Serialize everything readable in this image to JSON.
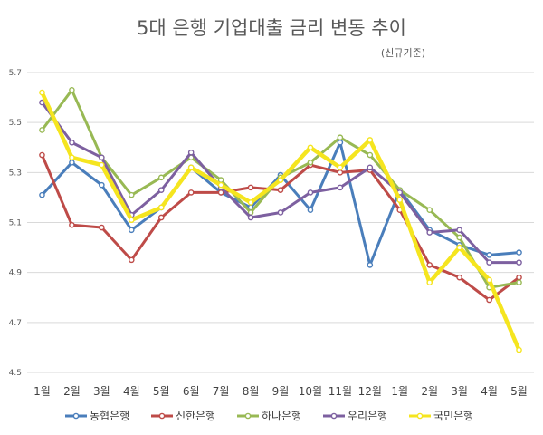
{
  "chart_data": {
    "type": "line",
    "title": "5대 은행 기업대출 금리 변동 추이",
    "subtitle": "(신규기준)",
    "categories": [
      "1월",
      "2월",
      "3월",
      "4월",
      "5월",
      "6월",
      "7월",
      "8월",
      "9월",
      "10월",
      "11월",
      "12월",
      "1월",
      "2월",
      "3월",
      "4월",
      "5월"
    ],
    "ylim": [
      4.5,
      5.7
    ],
    "yticks": [
      "4.5",
      "4.7",
      "4.9",
      "5.1",
      "5.3",
      "5.5",
      "5.7"
    ],
    "grid": true,
    "legend": "bottom",
    "series": [
      {
        "name": "농협은행",
        "color": "#4a7ebb",
        "values": [
          5.21,
          5.34,
          5.25,
          5.07,
          5.16,
          5.32,
          5.22,
          5.16,
          5.29,
          5.15,
          5.42,
          4.93,
          5.23,
          5.07,
          5.01,
          4.97,
          4.98
        ]
      },
      {
        "name": "신한은행",
        "color": "#be4b48",
        "values": [
          5.37,
          5.09,
          5.08,
          4.95,
          5.12,
          5.22,
          5.22,
          5.24,
          5.23,
          5.33,
          5.3,
          5.31,
          5.15,
          4.93,
          4.88,
          4.79,
          4.88
        ]
      },
      {
        "name": "하나은행",
        "color": "#98b954",
        "values": [
          5.47,
          5.63,
          5.36,
          5.21,
          5.28,
          5.36,
          5.27,
          5.14,
          5.28,
          5.34,
          5.44,
          5.37,
          5.23,
          5.15,
          5.04,
          4.84,
          4.86
        ]
      },
      {
        "name": "우리은행",
        "color": "#7d60a0",
        "values": [
          5.58,
          5.42,
          5.36,
          5.13,
          5.23,
          5.38,
          5.24,
          5.12,
          5.14,
          5.22,
          5.24,
          5.32,
          5.22,
          5.06,
          5.07,
          4.94,
          4.94
        ]
      },
      {
        "name": "국민은행",
        "color": "#f5e51f",
        "values": [
          5.62,
          5.36,
          5.33,
          5.11,
          5.16,
          5.32,
          5.25,
          5.18,
          5.27,
          5.4,
          5.32,
          5.43,
          5.19,
          4.86,
          5.0,
          4.87,
          4.59
        ]
      }
    ]
  }
}
